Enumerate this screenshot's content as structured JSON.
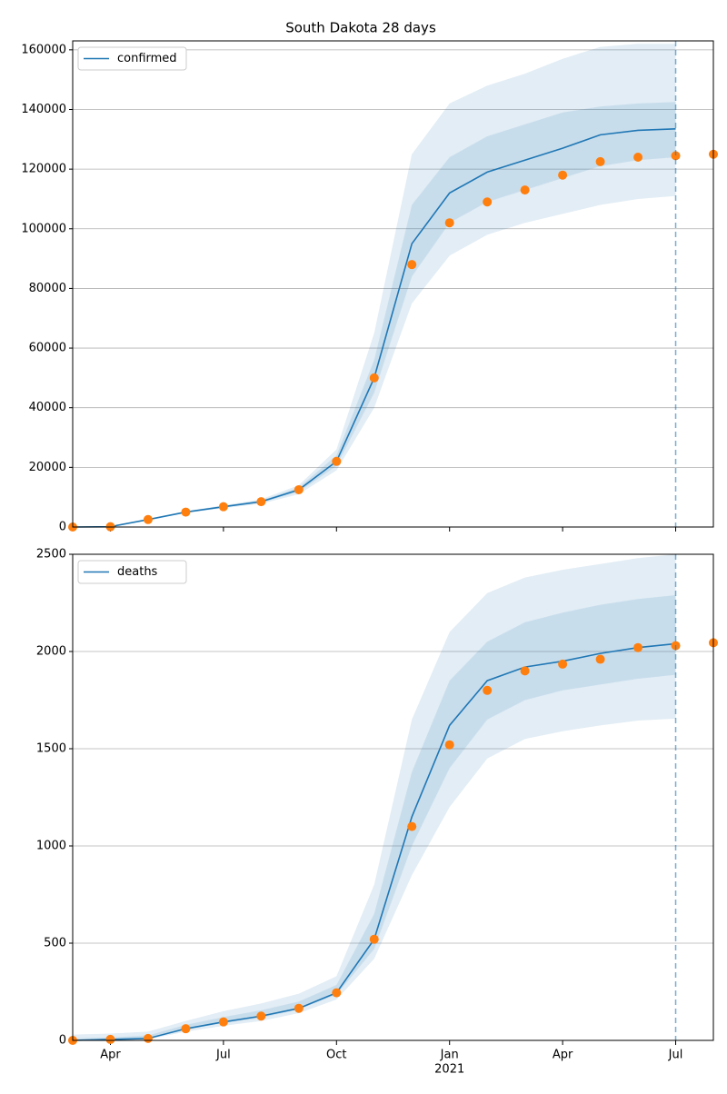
{
  "title": "South Dakota 28 days",
  "chart_data": [
    {
      "type": "line",
      "x": [
        "2020-03",
        "2020-04",
        "2020-05",
        "2020-06",
        "2020-07",
        "2020-08",
        "2020-09",
        "2020-10",
        "2020-11",
        "2020-12",
        "2021-01",
        "2021-02",
        "2021-03",
        "2021-04",
        "2021-05",
        "2021-06",
        "2021-07",
        "2021-08"
      ],
      "series": [
        {
          "name": "confirmed",
          "color": "#1f77b4",
          "values": [
            0,
            100,
            2500,
            5000,
            6800,
            8500,
            12500,
            22000,
            50000,
            95000,
            112000,
            119000,
            123000,
            127000,
            131500,
            133000,
            133500,
            null
          ]
        }
      ],
      "observed": {
        "color": "#ff7f0e",
        "values": [
          0,
          100,
          2500,
          5000,
          6800,
          8500,
          12500,
          22000,
          50000,
          88000,
          102000,
          109000,
          113000,
          118000,
          122500,
          124000,
          124500,
          125000
        ]
      },
      "bands": [
        {
          "color": "#1f77b4",
          "lower": [
            0,
            100,
            2400,
            4700,
            6300,
            7800,
            11000,
            19000,
            40000,
            75000,
            91000,
            98000,
            102000,
            105000,
            108000,
            110000,
            111000,
            null
          ],
          "upper": [
            0,
            100,
            2600,
            5300,
            7300,
            9300,
            14000,
            26000,
            65000,
            125000,
            142000,
            148000,
            152000,
            157000,
            161000,
            162000,
            162000,
            null
          ]
        },
        {
          "color": "#1f77b4",
          "lower": [
            0,
            100,
            2450,
            4850,
            6550,
            8100,
            11800,
            20500,
            45000,
            84000,
            102000,
            109000,
            113000,
            117000,
            121000,
            123000,
            124000,
            null
          ],
          "upper": [
            0,
            100,
            2550,
            5150,
            7050,
            8900,
            13200,
            24000,
            56000,
            108000,
            124000,
            131000,
            135000,
            139000,
            141000,
            142000,
            142500,
            null
          ]
        }
      ],
      "vline": "2021-07",
      "xlim": [
        "2020-03",
        "2021-08"
      ],
      "ylim": [
        0,
        163000
      ],
      "yticks": [
        0,
        20000,
        40000,
        60000,
        80000,
        100000,
        120000,
        140000,
        160000
      ],
      "grid": true,
      "legend": "upper-left"
    },
    {
      "type": "line",
      "x": [
        "2020-03",
        "2020-04",
        "2020-05",
        "2020-06",
        "2020-07",
        "2020-08",
        "2020-09",
        "2020-10",
        "2020-11",
        "2020-12",
        "2021-01",
        "2021-02",
        "2021-03",
        "2021-04",
        "2021-05",
        "2021-06",
        "2021-07",
        "2021-08"
      ],
      "series": [
        {
          "name": "deaths",
          "color": "#1f77b4",
          "values": [
            0,
            5,
            10,
            60,
            95,
            125,
            165,
            245,
            520,
            1150,
            1620,
            1850,
            1920,
            1950,
            1990,
            2020,
            2040,
            null
          ]
        }
      ],
      "observed": {
        "color": "#ff7f0e",
        "values": [
          0,
          5,
          10,
          60,
          95,
          125,
          165,
          245,
          520,
          1100,
          1520,
          1800,
          1900,
          1935,
          1960,
          2020,
          2030,
          2045
        ]
      },
      "bands": [
        {
          "color": "#1f77b4",
          "lower": [
            0,
            0,
            5,
            45,
            75,
            100,
            140,
            210,
            420,
            850,
            1200,
            1450,
            1550,
            1590,
            1620,
            1645,
            1655,
            null
          ],
          "upper": [
            30,
            35,
            45,
            100,
            150,
            190,
            240,
            330,
            800,
            1650,
            2100,
            2300,
            2380,
            2420,
            2450,
            2480,
            2500,
            null
          ]
        },
        {
          "color": "#1f77b4",
          "lower": [
            0,
            2,
            8,
            55,
            90,
            115,
            160,
            235,
            470,
            1000,
            1400,
            1650,
            1750,
            1800,
            1830,
            1860,
            1880,
            null
          ],
          "upper": [
            10,
            15,
            25,
            80,
            120,
            155,
            200,
            285,
            650,
            1380,
            1850,
            2050,
            2150,
            2200,
            2240,
            2270,
            2290,
            null
          ]
        }
      ],
      "vline": "2021-07",
      "xlim": [
        "2020-03",
        "2021-08"
      ],
      "ylim": [
        0,
        2500
      ],
      "yticks": [
        0,
        500,
        1000,
        1500,
        2000,
        2500
      ],
      "xticks": [
        {
          "value": "2020-04",
          "label": "Apr"
        },
        {
          "value": "2020-07",
          "label": "Jul"
        },
        {
          "value": "2020-10",
          "label": "Oct"
        },
        {
          "value": "2021-01",
          "label": "Jan",
          "year_label": "2021"
        },
        {
          "value": "2021-04",
          "label": "Apr"
        },
        {
          "value": "2021-07",
          "label": "Jul"
        }
      ],
      "grid": true,
      "legend": "upper-left"
    }
  ]
}
